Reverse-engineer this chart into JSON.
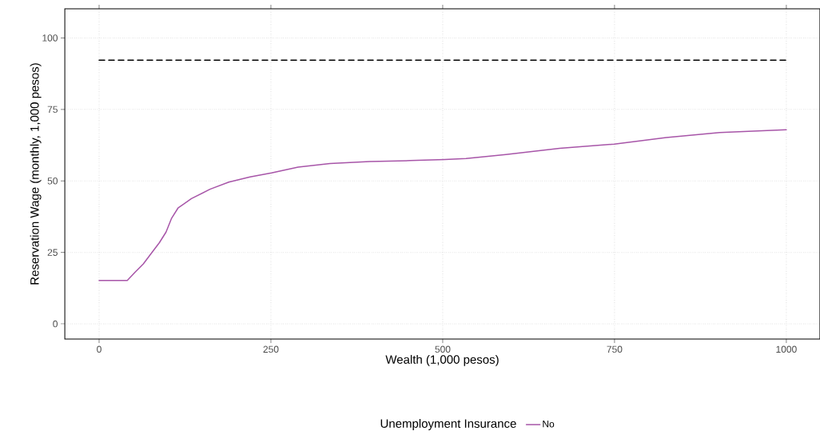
{
  "chart_data": {
    "type": "line",
    "xlabel": "Wealth (1,000 pesos)",
    "ylabel": "Reservation Wage (monthly, 1,000 pesos)",
    "legend_title": "Unemployment Insurance",
    "xlim": [
      -50,
      1049
    ],
    "ylim": [
      -5.3,
      110.2
    ],
    "xticks": [
      0,
      250,
      500,
      750,
      1000
    ],
    "yticks": [
      0,
      25,
      50,
      75,
      100
    ],
    "grid": true,
    "legend": "bottom",
    "marker": "none",
    "series": [
      {
        "name": "No",
        "color": "#a755a8",
        "line_style": "solid",
        "x": [
          0,
          41,
          52.8,
          64.4,
          76,
          87.7,
          97.4,
          105.2,
          114.8,
          134.3,
          161.4,
          188.7,
          219.7,
          250.8,
          289.5,
          336,
          394,
          452.6,
          503,
          534,
          592,
          670,
          749.6,
          825.3,
          903,
          1000
        ],
        "values": [
          15.2,
          15.2,
          18.2,
          21.0,
          24.7,
          28.4,
          32.1,
          36.8,
          40.5,
          43.8,
          47.1,
          49.6,
          51.4,
          52.8,
          54.8,
          56.1,
          56.8,
          57.1,
          57.5,
          57.8,
          59.2,
          61.4,
          62.9,
          65.2,
          66.9,
          67.9
        ]
      },
      {
        "color": "#000000",
        "line_style": "dashed",
        "x": [
          0,
          1000
        ],
        "values": [
          92.2,
          92.2
        ]
      }
    ]
  }
}
